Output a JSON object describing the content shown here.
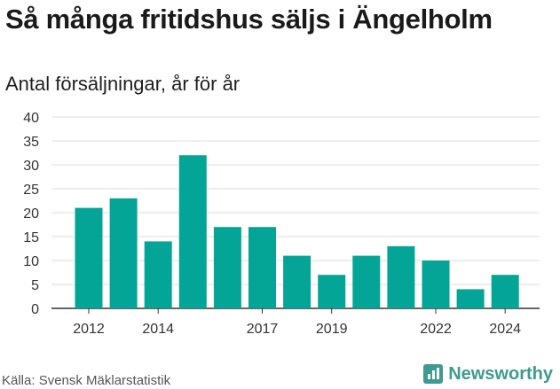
{
  "title": "Så många fritidshus säljs i Ängelholm",
  "subtitle": "Antal försäljningar, år för år",
  "source": "Källa: Svensk Mäklarstatistik",
  "brand": {
    "name": "Newsworthy",
    "icon": "newsworthy-logo-icon",
    "color": "#3d9b8f"
  },
  "chart_data": {
    "type": "bar",
    "categories": [
      "2012",
      "2013",
      "2014",
      "2015",
      "2016",
      "2017",
      "2018",
      "2019",
      "2020",
      "2021",
      "2022",
      "2023",
      "2024"
    ],
    "values": [
      21,
      23,
      14,
      32,
      17,
      17,
      11,
      7,
      11,
      13,
      10,
      4,
      7
    ],
    "x_tick_labels": [
      "2012",
      "2014",
      "2017",
      "2019",
      "2022",
      "2024"
    ],
    "y_ticks": [
      0,
      5,
      10,
      15,
      20,
      25,
      30,
      35,
      40
    ],
    "ylim": [
      0,
      40
    ],
    "grid": true,
    "bar_color": "#04a597"
  }
}
